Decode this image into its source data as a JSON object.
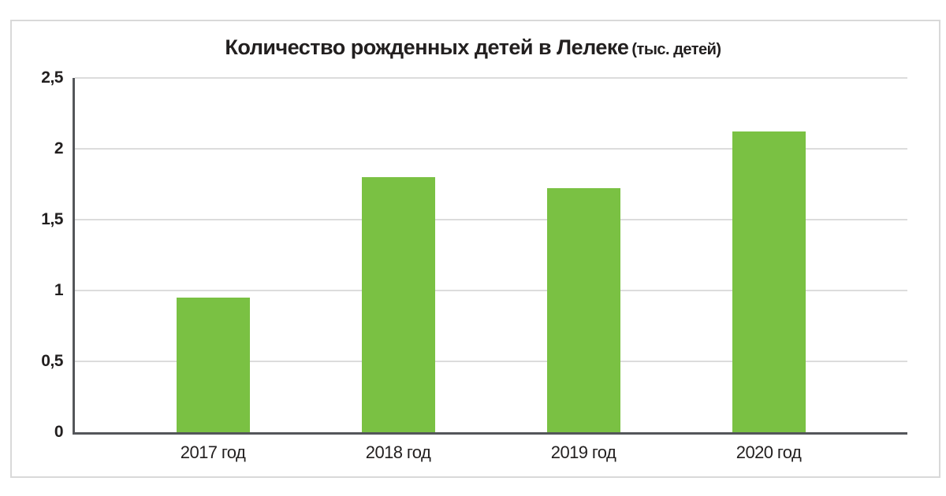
{
  "chart_data": {
    "type": "bar",
    "title": "Количество рожденных детей в Лелеке",
    "title_suffix": "(тыс. детей)",
    "categories": [
      "2017 год",
      "2018 год",
      "2019 год",
      "2020 год"
    ],
    "values": [
      0.95,
      1.8,
      1.72,
      2.12
    ],
    "xlabel": "",
    "ylabel": "",
    "ylim": [
      0,
      2.5
    ],
    "yticks": [
      {
        "value": 0,
        "label": "0"
      },
      {
        "value": 0.5,
        "label": "0,5"
      },
      {
        "value": 1,
        "label": "1"
      },
      {
        "value": 1.5,
        "label": "1,5"
      },
      {
        "value": 2,
        "label": "2"
      },
      {
        "value": 2.5,
        "label": "2,5"
      }
    ],
    "grid": true,
    "legend": "none",
    "colors": {
      "bar": "#7ac143",
      "axis": "#54565a",
      "grid": "#dcdcdc",
      "frame": "#d9d9d9",
      "text": "#221f1f",
      "background": "#ffffff"
    }
  }
}
